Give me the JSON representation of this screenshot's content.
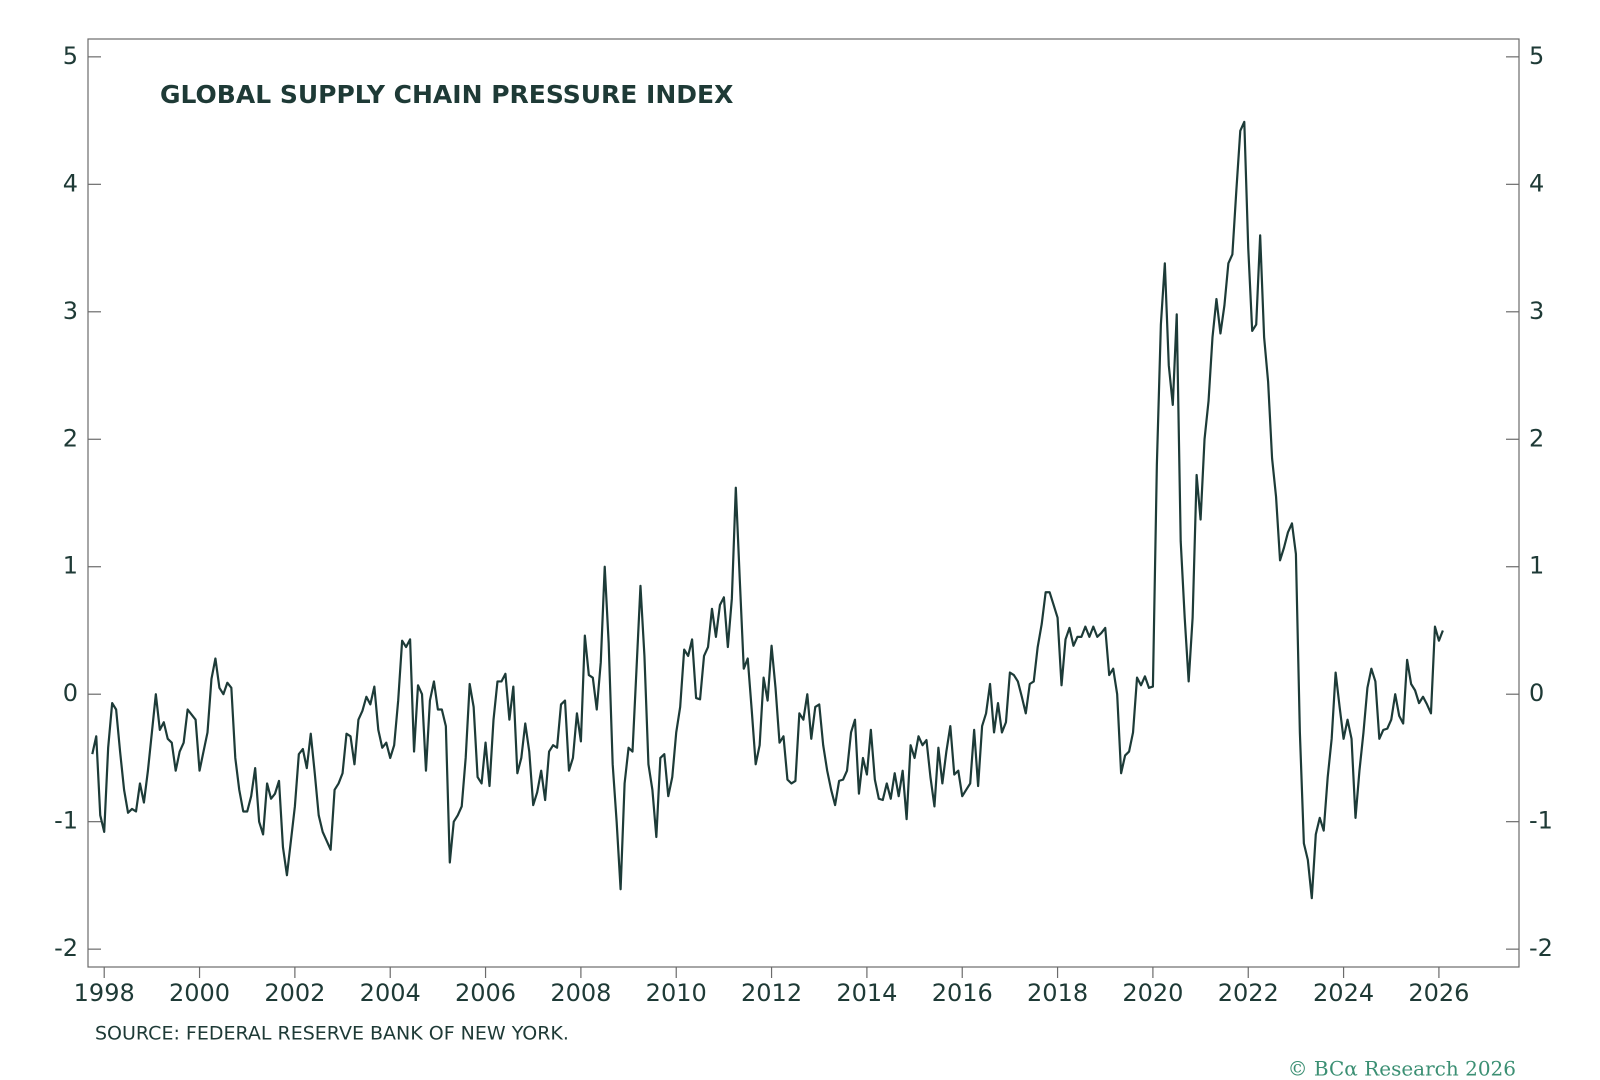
{
  "chart_data": {
    "type": "line",
    "title": "GLOBAL SUPPLY CHAIN PRESSURE INDEX",
    "source": "SOURCE: FEDERAL RESERVE BANK OF NEW YORK.",
    "credit": "© BCα Research 2026",
    "color": "#1d3b38",
    "grid": false,
    "xlim": [
      1997.66,
      2027.68
    ],
    "xticks": [
      1998,
      2000,
      2002,
      2004,
      2006,
      2008,
      2010,
      2012,
      2014,
      2016,
      2018,
      2020,
      2022,
      2024,
      2026
    ],
    "ylim": [
      -2.14,
      5.14
    ],
    "yticks": [
      -2,
      -1,
      0,
      1,
      2,
      3,
      4,
      5
    ],
    "y2lim": [
      -2.14,
      5.14
    ],
    "y2ticks": [
      -2,
      -1,
      0,
      1,
      2,
      3,
      4,
      5
    ],
    "x": [
      1997.75,
      1997.833,
      1997.917,
      1998,
      1998.083,
      1998.167,
      1998.25,
      1998.333,
      1998.417,
      1998.5,
      1998.583,
      1998.667,
      1998.75,
      1998.833,
      1998.917,
      1999,
      1999.083,
      1999.167,
      1999.25,
      1999.333,
      1999.417,
      1999.5,
      1999.583,
      1999.667,
      1999.75,
      1999.833,
      1999.917,
      2000,
      2000.083,
      2000.167,
      2000.25,
      2000.333,
      2000.417,
      2000.5,
      2000.583,
      2000.667,
      2000.75,
      2000.833,
      2000.917,
      2001,
      2001.083,
      2001.167,
      2001.25,
      2001.333,
      2001.417,
      2001.5,
      2001.583,
      2001.667,
      2001.75,
      2001.833,
      2001.917,
      2002,
      2002.083,
      2002.167,
      2002.25,
      2002.333,
      2002.417,
      2002.5,
      2002.583,
      2002.667,
      2002.75,
      2002.833,
      2002.917,
      2003,
      2003.083,
      2003.167,
      2003.25,
      2003.333,
      2003.417,
      2003.5,
      2003.583,
      2003.667,
      2003.75,
      2003.833,
      2003.917,
      2004,
      2004.083,
      2004.167,
      2004.25,
      2004.333,
      2004.417,
      2004.5,
      2004.583,
      2004.667,
      2004.75,
      2004.833,
      2004.917,
      2005,
      2005.083,
      2005.167,
      2005.25,
      2005.333,
      2005.417,
      2005.5,
      2005.583,
      2005.667,
      2005.75,
      2005.833,
      2005.917,
      2006,
      2006.083,
      2006.167,
      2006.25,
      2006.333,
      2006.417,
      2006.5,
      2006.583,
      2006.667,
      2006.75,
      2006.833,
      2006.917,
      2007,
      2007.083,
      2007.167,
      2007.25,
      2007.333,
      2007.417,
      2007.5,
      2007.583,
      2007.667,
      2007.75,
      2007.833,
      2007.917,
      2008,
      2008.083,
      2008.167,
      2008.25,
      2008.333,
      2008.417,
      2008.5,
      2008.583,
      2008.667,
      2008.75,
      2008.833,
      2008.917,
      2009,
      2009.083,
      2009.167,
      2009.25,
      2009.333,
      2009.417,
      2009.5,
      2009.583,
      2009.667,
      2009.75,
      2009.833,
      2009.917,
      2010,
      2010.083,
      2010.167,
      2010.25,
      2010.333,
      2010.417,
      2010.5,
      2010.583,
      2010.667,
      2010.75,
      2010.833,
      2010.917,
      2011,
      2011.083,
      2011.167,
      2011.25,
      2011.333,
      2011.417,
      2011.5,
      2011.583,
      2011.667,
      2011.75,
      2011.833,
      2011.917,
      2012,
      2012.083,
      2012.167,
      2012.25,
      2012.333,
      2012.417,
      2012.5,
      2012.583,
      2012.667,
      2012.75,
      2012.833,
      2012.917,
      2013,
      2013.083,
      2013.167,
      2013.25,
      2013.333,
      2013.417,
      2013.5,
      2013.583,
      2013.667,
      2013.75,
      2013.833,
      2013.917,
      2014,
      2014.083,
      2014.167,
      2014.25,
      2014.333,
      2014.417,
      2014.5,
      2014.583,
      2014.667,
      2014.75,
      2014.833,
      2014.917,
      2015,
      2015.083,
      2015.167,
      2015.25,
      2015.333,
      2015.417,
      2015.5,
      2015.583,
      2015.667,
      2015.75,
      2015.833,
      2015.917,
      2016,
      2016.083,
      2016.167,
      2016.25,
      2016.333,
      2016.417,
      2016.5,
      2016.583,
      2016.667,
      2016.75,
      2016.833,
      2016.917,
      2017,
      2017.083,
      2017.167,
      2017.25,
      2017.333,
      2017.417,
      2017.5,
      2017.583,
      2017.667,
      2017.75,
      2017.833,
      2017.917,
      2018,
      2018.083,
      2018.167,
      2018.25,
      2018.333,
      2018.417,
      2018.5,
      2018.583,
      2018.667,
      2018.75,
      2018.833,
      2018.917,
      2019,
      2019.083,
      2019.167,
      2019.25,
      2019.333,
      2019.417,
      2019.5,
      2019.583,
      2019.667,
      2019.75,
      2019.833,
      2019.917,
      2020,
      2020.083,
      2020.167,
      2020.25,
      2020.333,
      2020.417,
      2020.5,
      2020.583,
      2020.667,
      2020.75,
      2020.833,
      2020.917,
      2021,
      2021.083,
      2021.167,
      2021.25,
      2021.333,
      2021.417,
      2021.5,
      2021.583,
      2021.667,
      2021.75,
      2021.833,
      2021.917,
      2022,
      2022.083,
      2022.167,
      2022.25,
      2022.333,
      2022.417,
      2022.5,
      2022.583,
      2022.667,
      2022.75,
      2022.833,
      2022.917,
      2023,
      2023.083,
      2023.167,
      2023.25,
      2023.333,
      2023.417,
      2023.5,
      2023.583,
      2023.667,
      2023.75,
      2023.833,
      2023.917,
      2024,
      2024.083,
      2024.167,
      2024.25,
      2024.333,
      2024.417,
      2024.5,
      2024.583,
      2024.667,
      2024.75,
      2024.833,
      2024.917,
      2025,
      2025.083,
      2025.167,
      2025.25,
      2025.333,
      2025.417,
      2025.5,
      2025.583,
      2025.667,
      2025.75,
      2025.833,
      2025.917,
      2026,
      2026.083
    ],
    "values": [
      -0.47,
      -0.33,
      -0.95,
      -1.08,
      -0.42,
      -0.07,
      -0.12,
      -0.45,
      -0.75,
      -0.93,
      -0.9,
      -0.92,
      -0.7,
      -0.85,
      -0.6,
      -0.3,
      0,
      -0.28,
      -0.22,
      -0.35,
      -0.38,
      -0.6,
      -0.45,
      -0.38,
      -0.12,
      -0.16,
      -0.2,
      -0.6,
      -0.45,
      -0.3,
      0.12,
      0.28,
      0.05,
      0,
      0.09,
      0.05,
      -0.5,
      -0.75,
      -0.92,
      -0.92,
      -0.8,
      -0.58,
      -1,
      -1.1,
      -0.7,
      -0.82,
      -0.78,
      -0.68,
      -1.2,
      -1.42,
      -1.15,
      -0.88,
      -0.47,
      -0.43,
      -0.58,
      -0.31,
      -0.62,
      -0.95,
      -1.08,
      -1.15,
      -1.22,
      -0.75,
      -0.7,
      -0.62,
      -0.31,
      -0.33,
      -0.55,
      -0.2,
      -0.13,
      -0.02,
      -0.08,
      0.06,
      -0.28,
      -0.42,
      -0.38,
      -0.5,
      -0.4,
      -0.05,
      0.42,
      0.37,
      0.43,
      -0.45,
      0.07,
      0,
      -0.6,
      -0.05,
      0.1,
      -0.12,
      -0.12,
      -0.25,
      -1.32,
      -1,
      -0.95,
      -0.88,
      -0.5,
      0.08,
      -0.1,
      -0.65,
      -0.7,
      -0.38,
      -0.72,
      -0.2,
      0.1,
      0.1,
      0.16,
      -0.2,
      0.06,
      -0.62,
      -0.5,
      -0.23,
      -0.45,
      -0.87,
      -0.77,
      -0.6,
      -0.83,
      -0.45,
      -0.4,
      -0.42,
      -0.08,
      -0.05,
      -0.6,
      -0.5,
      -0.15,
      -0.37,
      0.46,
      0.15,
      0.13,
      -0.12,
      0.25,
      1,
      0.4,
      -0.55,
      -1,
      -1.53,
      -0.7,
      -0.42,
      -0.45,
      0.2,
      0.85,
      0.3,
      -0.55,
      -0.75,
      -1.12,
      -0.5,
      -0.47,
      -0.8,
      -0.65,
      -0.3,
      -0.1,
      0.35,
      0.3,
      0.43,
      -0.03,
      -0.04,
      0.3,
      0.37,
      0.67,
      0.45,
      0.7,
      0.76,
      0.37,
      0.75,
      1.62,
      0.9,
      0.2,
      0.28,
      -0.12,
      -0.55,
      -0.4,
      0.13,
      -0.05,
      0.38,
      0.05,
      -0.38,
      -0.33,
      -0.67,
      -0.7,
      -0.68,
      -0.15,
      -0.2,
      0,
      -0.35,
      -0.1,
      -0.08,
      -0.4,
      -0.6,
      -0.75,
      -0.87,
      -0.68,
      -0.67,
      -0.6,
      -0.3,
      -0.2,
      -0.78,
      -0.5,
      -0.63,
      -0.28,
      -0.67,
      -0.82,
      -0.83,
      -0.7,
      -0.82,
      -0.62,
      -0.8,
      -0.6,
      -0.98,
      -0.4,
      -0.5,
      -0.33,
      -0.4,
      -0.36,
      -0.65,
      -0.88,
      -0.42,
      -0.7,
      -0.45,
      -0.25,
      -0.63,
      -0.6,
      -0.8,
      -0.75,
      -0.7,
      -0.28,
      -0.72,
      -0.25,
      -0.15,
      0.08,
      -0.3,
      -0.07,
      -0.3,
      -0.22,
      0.17,
      0.15,
      0.1,
      -0.02,
      -0.15,
      0.08,
      0.1,
      0.37,
      0.55,
      0.8,
      0.8,
      0.7,
      0.6,
      0.07,
      0.43,
      0.52,
      0.38,
      0.45,
      0.45,
      0.53,
      0.45,
      0.53,
      0.45,
      0.48,
      0.52,
      0.15,
      0.2,
      0,
      -0.62,
      -0.48,
      -0.45,
      -0.3,
      0.13,
      0.07,
      0.14,
      0.05,
      0.06,
      1.8,
      2.9,
      3.38,
      2.58,
      2.27,
      2.98,
      1.2,
      0.6,
      0.1,
      0.6,
      1.72,
      1.37,
      2,
      2.3,
      2.8,
      3.1,
      2.83,
      3.05,
      3.38,
      3.45,
      3.95,
      4.42,
      4.49,
      3.5,
      2.85,
      2.9,
      3.6,
      2.8,
      2.45,
      1.85,
      1.55,
      1.05,
      1.15,
      1.27,
      1.34,
      1.1,
      -0.3,
      -1.17,
      -1.3,
      -1.6,
      -1.1,
      -0.97,
      -1.07,
      -0.65,
      -0.35,
      0.17,
      -0.1,
      -0.35,
      -0.2,
      -0.35,
      -0.97,
      -0.6,
      -0.3,
      0.05,
      0.2,
      0.1,
      -0.35,
      -0.28,
      -0.27,
      -0.2,
      0,
      -0.17,
      -0.23,
      0.27,
      0.08,
      0.03,
      -0.07,
      -0.02,
      -0.08,
      -0.15,
      0.53,
      0.42,
      0.5
    ]
  }
}
